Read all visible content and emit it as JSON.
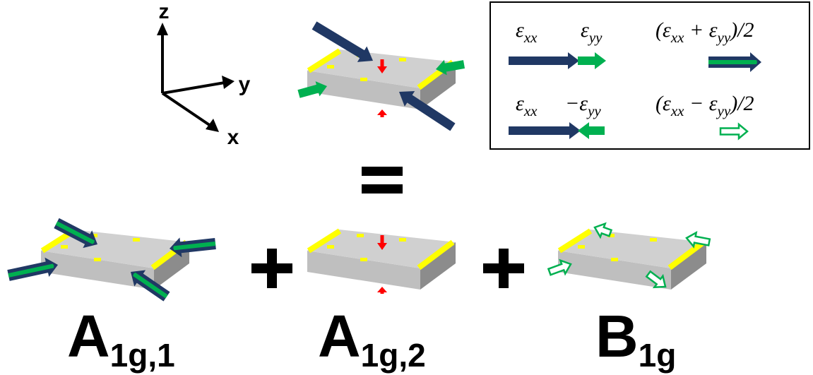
{
  "axes": {
    "z": "z",
    "y": "y",
    "x": "x"
  },
  "legend": {
    "rows": [
      {
        "first": [
          "ε",
          "xx"
        ],
        "second": [
          "ε",
          "yy"
        ],
        "combined": [
          "(ε",
          "xx",
          " + ε",
          "yy",
          ")/2"
        ]
      },
      {
        "first": [
          "ε",
          "xx"
        ],
        "second": [
          "−ε",
          "yy"
        ],
        "combined": [
          "(ε",
          "xx",
          " − ε",
          "yy",
          ")/2"
        ]
      }
    ]
  },
  "modes": [
    {
      "label": [
        "A",
        "1g,1"
      ]
    },
    {
      "label": [
        "A",
        "1g,2"
      ]
    },
    {
      "label": [
        "B",
        "1g"
      ]
    }
  ]
}
